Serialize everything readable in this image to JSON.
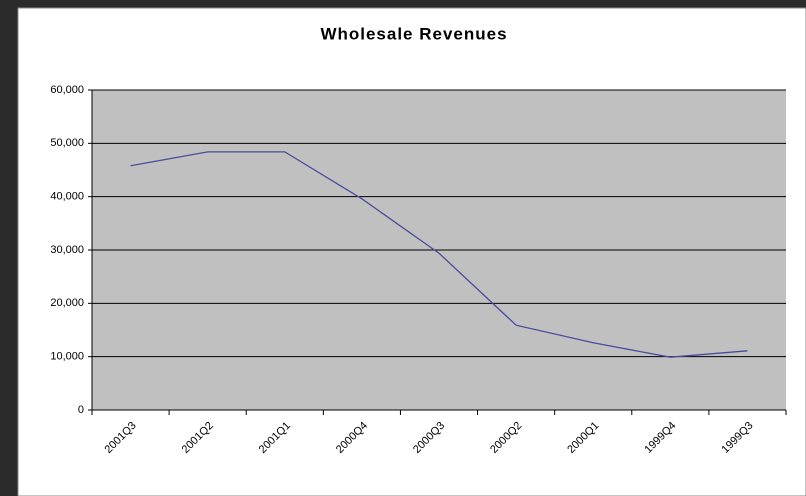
{
  "chart_data": {
    "type": "line",
    "title": "Wholesale Revenues",
    "categories": [
      "2001Q3",
      "2001Q2",
      "2001Q1",
      "2000Q4",
      "2000Q3",
      "2000Q2",
      "2000Q1",
      "1999Q4",
      "1999Q3"
    ],
    "series": [
      {
        "name": "Wholesale Revenues",
        "color": "#4b4b9e",
        "values": [
          45800,
          48400,
          48400,
          39600,
          29400,
          15900,
          12600,
          9900,
          11100
        ]
      }
    ],
    "ylim": [
      0,
      60000
    ],
    "yticks": [
      0,
      {
        "value": 10000,
        "label": "10,000"
      },
      {
        "value": 20000,
        "label": "20,000"
      },
      {
        "value": 30000,
        "label": "30,000"
      },
      {
        "value": 40000,
        "label": "40,000"
      },
      {
        "value": 50000,
        "label": "50,000"
      },
      {
        "value": 60000,
        "label": "60,000"
      }
    ],
    "grid": true,
    "plot_background": "#c0c0c0"
  }
}
